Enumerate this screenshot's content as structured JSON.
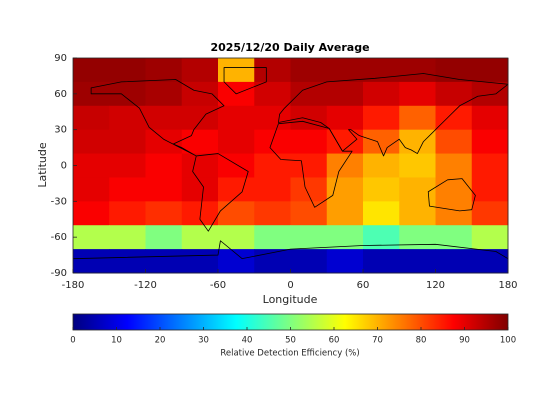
{
  "chart_data": {
    "type": "heatmap",
    "title": "2025/12/20 Daily Average",
    "x_label": "Longitude",
    "y_label": "Latitude",
    "xlim": [
      -180,
      180
    ],
    "xticks": [
      -180,
      -120,
      -60,
      0,
      60,
      120,
      180
    ],
    "ylim": [
      -90,
      90
    ],
    "yticks": [
      -90,
      -60,
      -30,
      0,
      30,
      60,
      90
    ],
    "colormap": "jet",
    "lon": [
      -165,
      -135,
      -105,
      -75,
      -45,
      -15,
      15,
      45,
      75,
      105,
      135,
      165
    ],
    "lat": [
      80,
      60,
      40,
      20,
      0,
      -20,
      -40,
      -60,
      -80
    ],
    "values": [
      [
        98,
        98,
        97,
        95,
        70,
        95,
        97,
        97,
        97,
        97,
        98,
        98
      ],
      [
        97,
        97,
        96,
        93,
        88,
        92,
        95,
        95,
        92,
        90,
        93,
        95
      ],
      [
        93,
        92,
        92,
        92,
        90,
        90,
        92,
        90,
        85,
        78,
        85,
        90
      ],
      [
        92,
        92,
        90,
        88,
        90,
        88,
        88,
        85,
        78,
        70,
        80,
        88
      ],
      [
        90,
        90,
        88,
        90,
        88,
        85,
        85,
        75,
        70,
        68,
        75,
        85
      ],
      [
        90,
        88,
        88,
        90,
        85,
        85,
        82,
        72,
        68,
        70,
        75,
        85
      ],
      [
        88,
        85,
        83,
        85,
        80,
        82,
        80,
        72,
        65,
        70,
        75,
        82
      ],
      [
        55,
        55,
        50,
        55,
        55,
        50,
        50,
        50,
        45,
        50,
        50,
        55
      ],
      [
        5,
        5,
        5,
        5,
        8,
        5,
        5,
        8,
        5,
        5,
        5,
        5
      ]
    ],
    "colorbar": {
      "label": "Relative Detection Efficiency (%)",
      "lim": [
        0,
        100
      ],
      "ticks": [
        0,
        10,
        20,
        30,
        40,
        50,
        60,
        70,
        80,
        90,
        100
      ]
    }
  }
}
